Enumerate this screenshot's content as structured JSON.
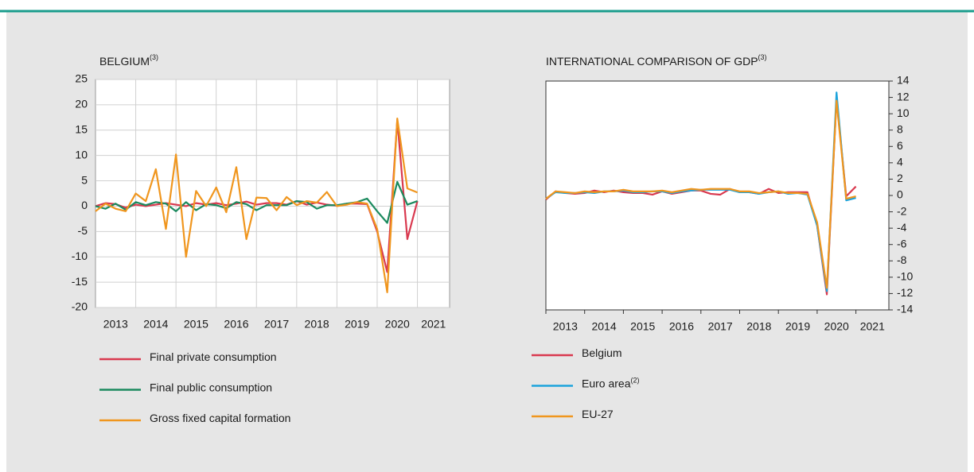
{
  "chart_data": [
    {
      "type": "line",
      "title": "BELGIUM",
      "title_note": "(3)",
      "grid": true,
      "y_axis_side": "left",
      "x": [
        2013,
        2013.25,
        2013.5,
        2013.75,
        2014,
        2014.25,
        2014.5,
        2014.75,
        2015,
        2015.25,
        2015.5,
        2015.75,
        2016,
        2016.25,
        2016.5,
        2016.75,
        2017,
        2017.25,
        2017.5,
        2017.75,
        2018,
        2018.25,
        2018.5,
        2018.75,
        2019,
        2019.25,
        2019.5,
        2019.75,
        2020,
        2020.25,
        2020.5,
        2020.75,
        2021
      ],
      "xlim": [
        2013,
        2021.8
      ],
      "xticks": [
        2013,
        2014,
        2015,
        2016,
        2017,
        2018,
        2019,
        2020,
        2021
      ],
      "ylim": [
        -20,
        25
      ],
      "yticks": [
        25,
        20,
        15,
        10,
        5,
        0,
        -5,
        -10,
        -15,
        -20
      ],
      "series": [
        {
          "name": "Final private consumption",
          "color": "#d9394f",
          "values": [
            0,
            0.6,
            0.4,
            -0.3,
            0.3,
            0,
            0.3,
            0.6,
            0.3,
            0,
            0.6,
            0.3,
            0.6,
            0.2,
            0.5,
            0.9,
            0.3,
            0.6,
            0.6,
            0.3,
            1,
            0.3,
            0.7,
            0.3,
            0.1,
            0.5,
            0.5,
            0.4,
            -5,
            -13,
            17,
            -6.5,
            1
          ]
        },
        {
          "name": "Final public consumption",
          "color": "#1b8a5e",
          "values": [
            0,
            -0.5,
            0.5,
            -0.7,
            0.8,
            0.2,
            0.8,
            0.5,
            -1,
            0.8,
            -0.8,
            0.4,
            0.2,
            -0.4,
            0.8,
            0.4,
            -0.8,
            0.2,
            0.2,
            0.2,
            1,
            0.8,
            -0.5,
            0.2,
            0.2,
            0.5,
            0.8,
            1.5,
            -1,
            -3.3,
            4.8,
            0.3,
            1
          ]
        },
        {
          "name": "Gross fixed capital formation",
          "color": "#f0961e",
          "values": [
            -1,
            0.5,
            -0.5,
            -1,
            2.5,
            1,
            7.3,
            -4.5,
            10.2,
            -10,
            3,
            0,
            3.7,
            -1.2,
            7.7,
            -6.5,
            1.7,
            1.6,
            -0.8,
            1.8,
            0.2,
            1,
            0.7,
            2.8,
            0,
            0.3,
            0.8,
            0.5,
            -4.5,
            -17,
            17.3,
            3.5,
            2.7
          ]
        }
      ]
    },
    {
      "type": "line",
      "title": "INTERNATIONAL COMPARISON OF GDP",
      "title_note": "(3)",
      "grid": false,
      "y_axis_side": "right",
      "x": [
        2013,
        2013.25,
        2013.5,
        2013.75,
        2014,
        2014.25,
        2014.5,
        2014.75,
        2015,
        2015.25,
        2015.5,
        2015.75,
        2016,
        2016.25,
        2016.5,
        2016.75,
        2017,
        2017.25,
        2017.5,
        2017.75,
        2018,
        2018.25,
        2018.5,
        2018.75,
        2019,
        2019.25,
        2019.5,
        2019.75,
        2020,
        2020.25,
        2020.5,
        2020.75,
        2021
      ],
      "xlim": [
        2013,
        2021.85
      ],
      "xticks": [
        2013,
        2014,
        2015,
        2016,
        2017,
        2018,
        2019,
        2020,
        2021
      ],
      "ylim": [
        -14,
        14
      ],
      "yticks": [
        14,
        12,
        10,
        8,
        6,
        4,
        2,
        0,
        -2,
        -4,
        -6,
        -8,
        -10,
        -12,
        -14
      ],
      "series": [
        {
          "name": "Belgium",
          "color": "#d9394f",
          "values": [
            -0.5,
            0.5,
            0.3,
            0.2,
            0.3,
            0.6,
            0.4,
            0.6,
            0.4,
            0.3,
            0.3,
            0.1,
            0.5,
            0.2,
            0.4,
            0.6,
            0.6,
            0.2,
            0.1,
            0.8,
            0.4,
            0.4,
            0.2,
            0.8,
            0.3,
            0.4,
            0.4,
            0.4,
            -3.7,
            -12.1,
            11.8,
            -0.1,
            1.1
          ]
        },
        {
          "name": "Euro area",
          "name_note": "(2)",
          "color": "#1ba3dc",
          "values": [
            -0.4,
            0.4,
            0.3,
            0.3,
            0.4,
            0.3,
            0.5,
            0.5,
            0.6,
            0.4,
            0.4,
            0.5,
            0.5,
            0.3,
            0.5,
            0.6,
            0.7,
            0.7,
            0.7,
            0.7,
            0.4,
            0.4,
            0.2,
            0.4,
            0.5,
            0.2,
            0.3,
            0.1,
            -3.7,
            -11.7,
            12.6,
            -0.6,
            -0.3
          ]
        },
        {
          "name": "EU-27",
          "color": "#f0961e",
          "values": [
            -0.4,
            0.5,
            0.4,
            0.3,
            0.5,
            0.4,
            0.5,
            0.5,
            0.7,
            0.5,
            0.5,
            0.5,
            0.6,
            0.4,
            0.6,
            0.8,
            0.7,
            0.8,
            0.8,
            0.8,
            0.5,
            0.5,
            0.3,
            0.4,
            0.5,
            0.3,
            0.3,
            0.2,
            -3.3,
            -11.3,
            11.6,
            -0.4,
            -0.1
          ]
        }
      ]
    }
  ]
}
